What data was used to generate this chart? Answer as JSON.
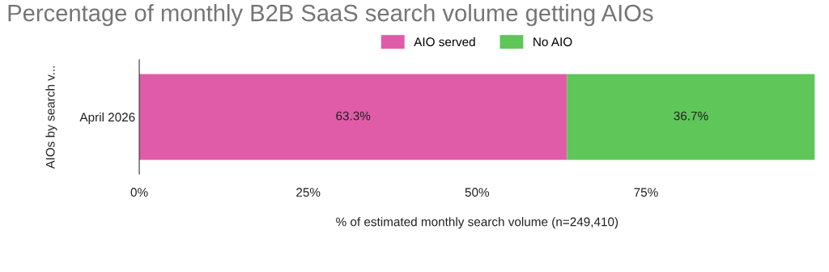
{
  "chart_data": {
    "type": "bar",
    "orientation": "horizontal",
    "stacked": true,
    "title": "Percentage of monthly B2B SaaS search volume getting AIOs",
    "xlabel": "% of estimated monthly search volume (n=249,410)",
    "ylabel": "AIOs by search v...",
    "categories": [
      "April 2026"
    ],
    "series": [
      {
        "name": "AIO served",
        "color": "#e05ca8",
        "values": [
          63.3
        ],
        "value_labels": [
          "63.3%"
        ]
      },
      {
        "name": "No AIO",
        "color": "#5fc65a",
        "values": [
          36.7
        ],
        "value_labels": [
          "36.7%"
        ]
      }
    ],
    "xlim": [
      0,
      100
    ],
    "xticks": [
      {
        "value": 0,
        "label": "0%"
      },
      {
        "value": 25,
        "label": "25%"
      },
      {
        "value": 50,
        "label": "50%"
      },
      {
        "value": 75,
        "label": "75%"
      }
    ],
    "grid": false,
    "legend": "top"
  }
}
